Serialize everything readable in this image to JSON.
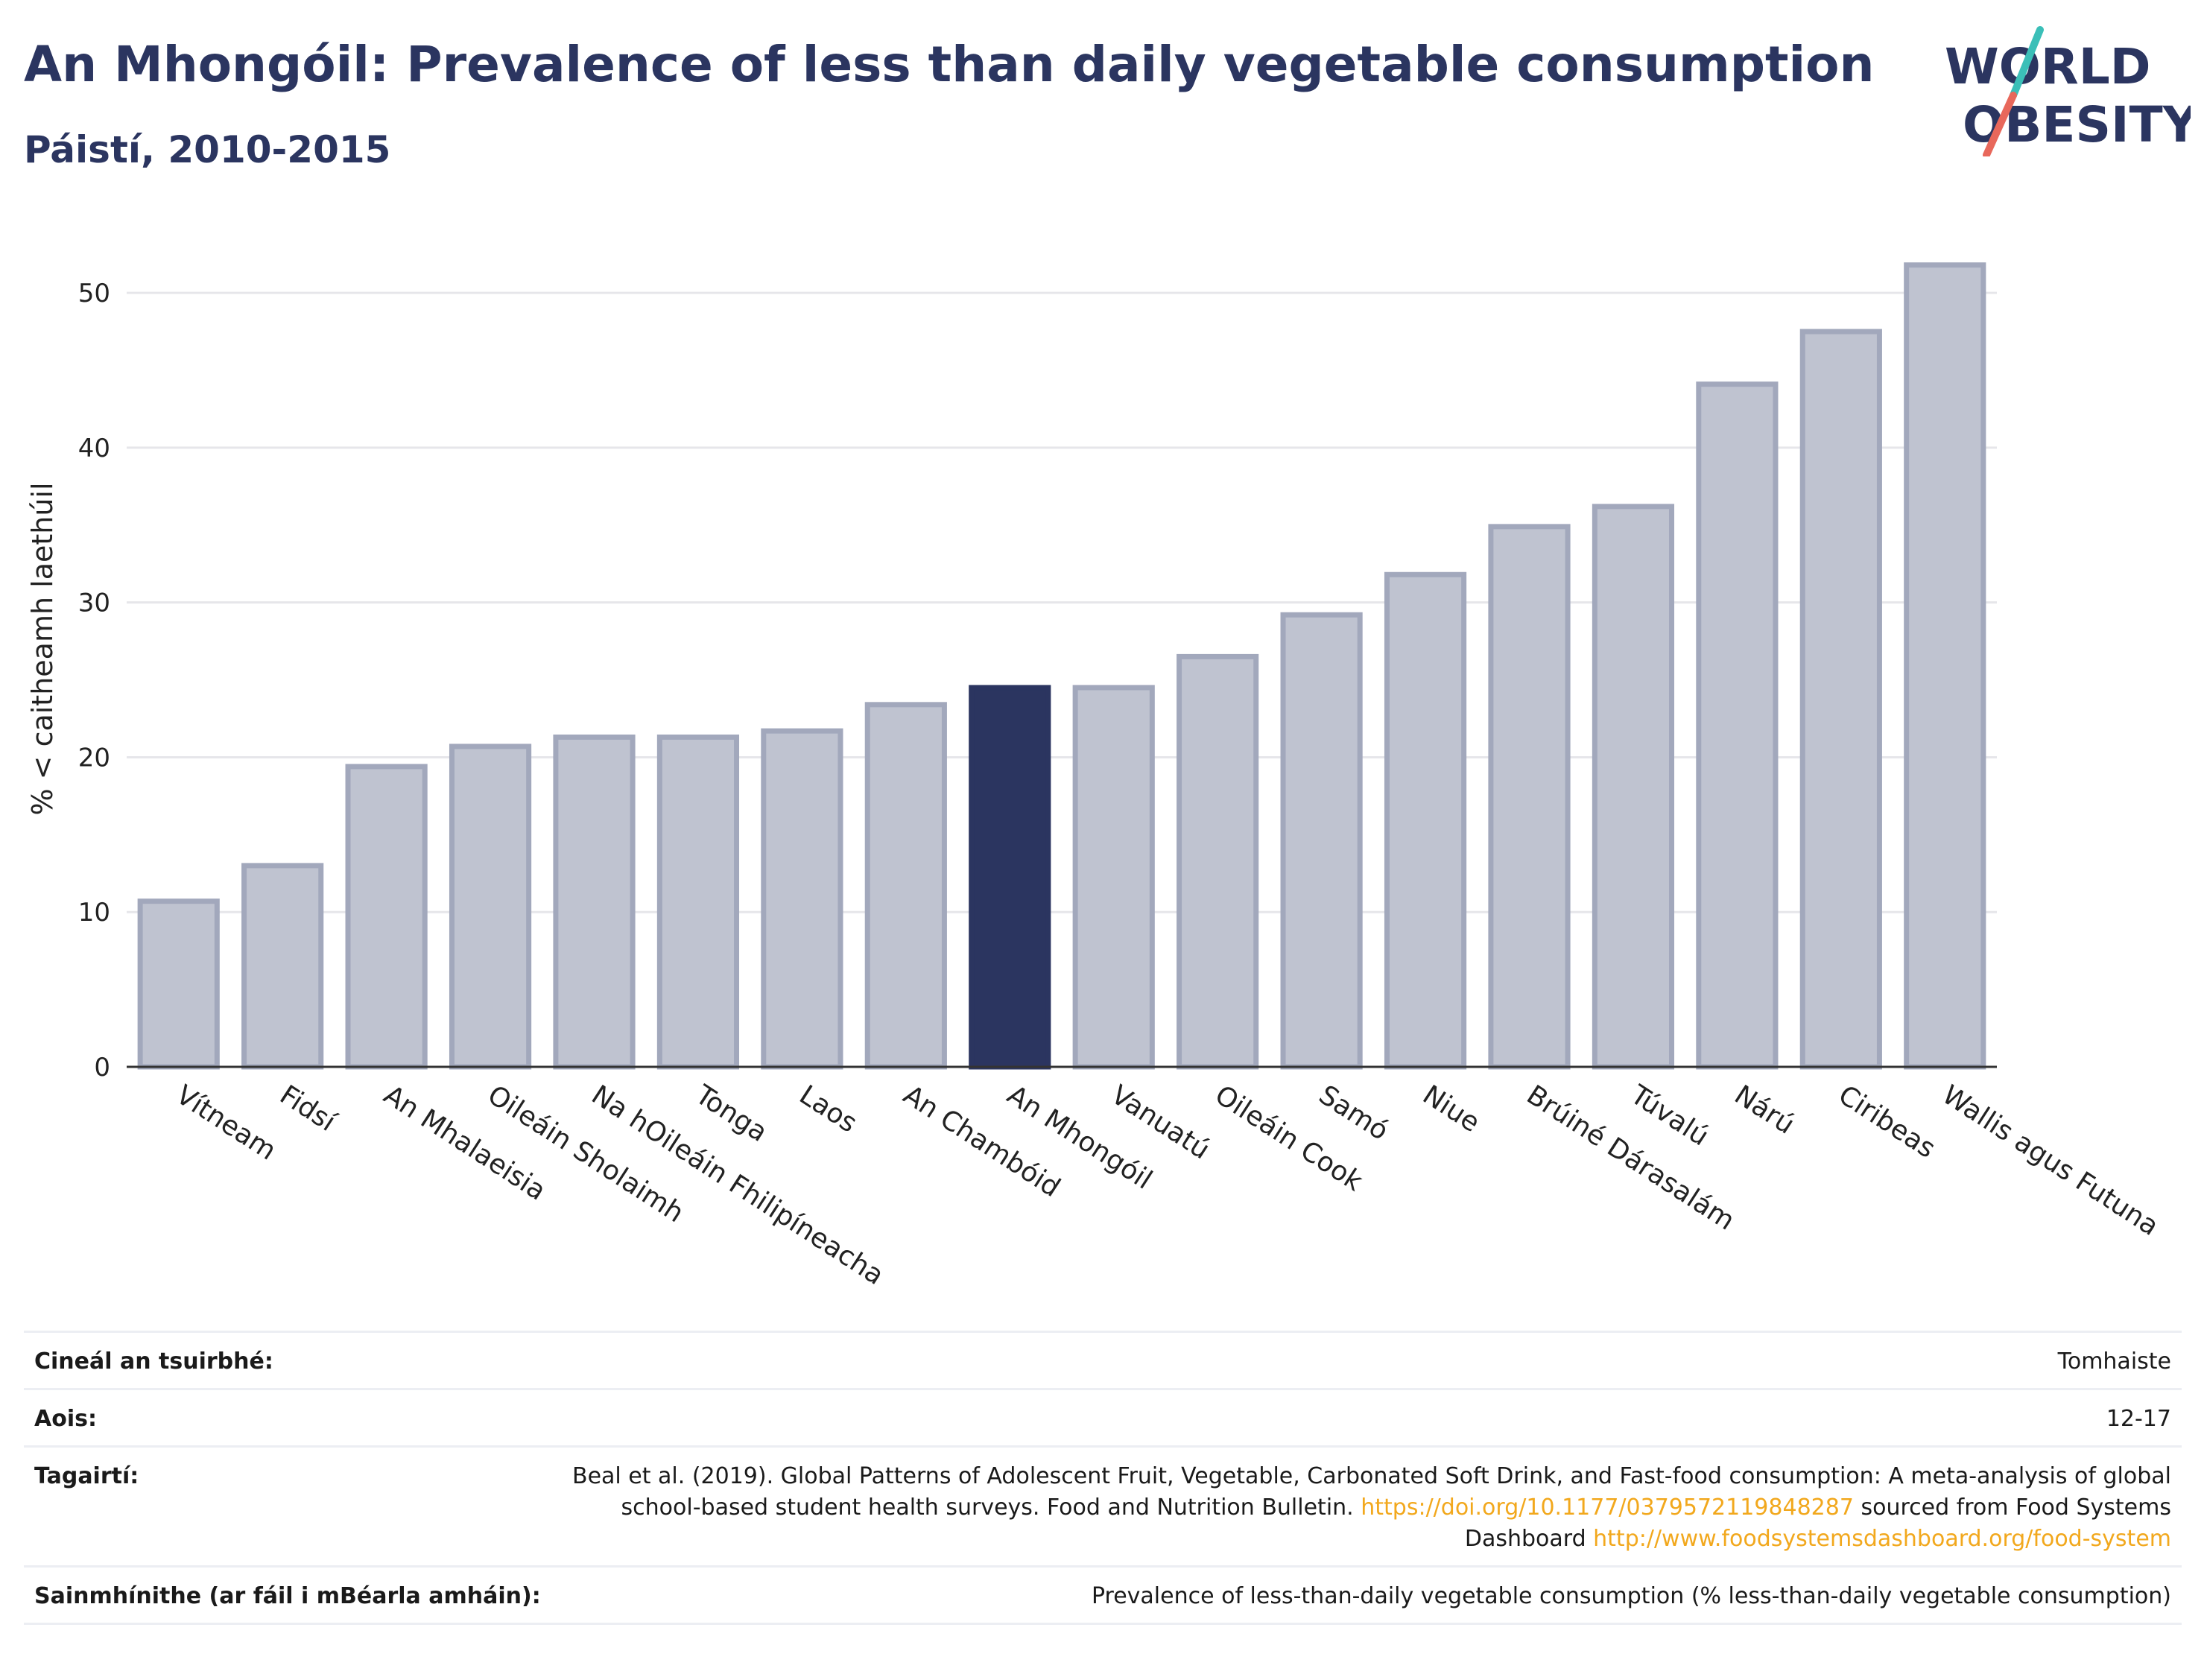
{
  "header": {
    "title": "An Mhongóil: Prevalence of less than daily vegetable consumption",
    "subtitle": "Páistí, 2010-2015"
  },
  "logo": {
    "line1": "WORLD",
    "line2": "OBESITY"
  },
  "chart_data": {
    "type": "bar",
    "title": "An Mhongóil: Prevalence of less than daily vegetable consumption",
    "subtitle": "Páistí, 2010-2015",
    "xlabel": "",
    "ylabel": "% < caitheamh laethúil",
    "ylim": [
      0,
      54
    ],
    "yticks": [
      0,
      10,
      20,
      30,
      40,
      50
    ],
    "grid": true,
    "highlight": "An Mhongóil",
    "categories": [
      "Vítneam",
      "Fidsí",
      "An Mhalaeisia",
      "Oileáin Sholaimh",
      "Na hOileáin Fhilipíneacha",
      "Tonga",
      "Laos",
      "An Chambóid",
      "An Mhongóil",
      "Vanuatú",
      "Oileáin Cook",
      "Samó",
      "Niue",
      "Brúiné Dárasalám",
      "Túvalú",
      "Nárú",
      "Ciribeas",
      "Wallis agus Futuna"
    ],
    "values": [
      10.7,
      13.0,
      19.4,
      20.7,
      21.3,
      21.3,
      21.7,
      23.4,
      24.5,
      24.5,
      26.5,
      29.2,
      31.8,
      34.9,
      36.2,
      44.1,
      47.5,
      51.8
    ],
    "colors": {
      "bar_fill": "#bfc3d0",
      "bar_stroke": "#a2a8bc",
      "highlight_fill": "#2b3560",
      "axis": "#333333",
      "grid": "#e6e6ea"
    }
  },
  "info": {
    "rows": [
      {
        "label": "Cineál an tsuirbhé:",
        "value": "Tomhaiste"
      },
      {
        "label": "Aois:",
        "value": "12-17"
      },
      {
        "label": "Tagairtí:",
        "value_prefix": "Beal et al. (2019). Global Patterns of Adolescent Fruit, Vegetable, Carbonated Soft Drink, and Fast-food consumption: A meta-analysis of global school-based student health surveys. Food and Nutrition Bulletin. ",
        "link1": "https://doi.org/10.1177/0379572119848287",
        "value_mid": " sourced from Food Systems Dashboard ",
        "link2": "http://www.foodsystemsdashboard.org/food-system"
      },
      {
        "label": "Sainmhínithe (ar fáil i mBéarla amháin):",
        "value": "Prevalence of less-than-daily vegetable consumption (% less-than-daily vegetable consumption)"
      }
    ]
  }
}
